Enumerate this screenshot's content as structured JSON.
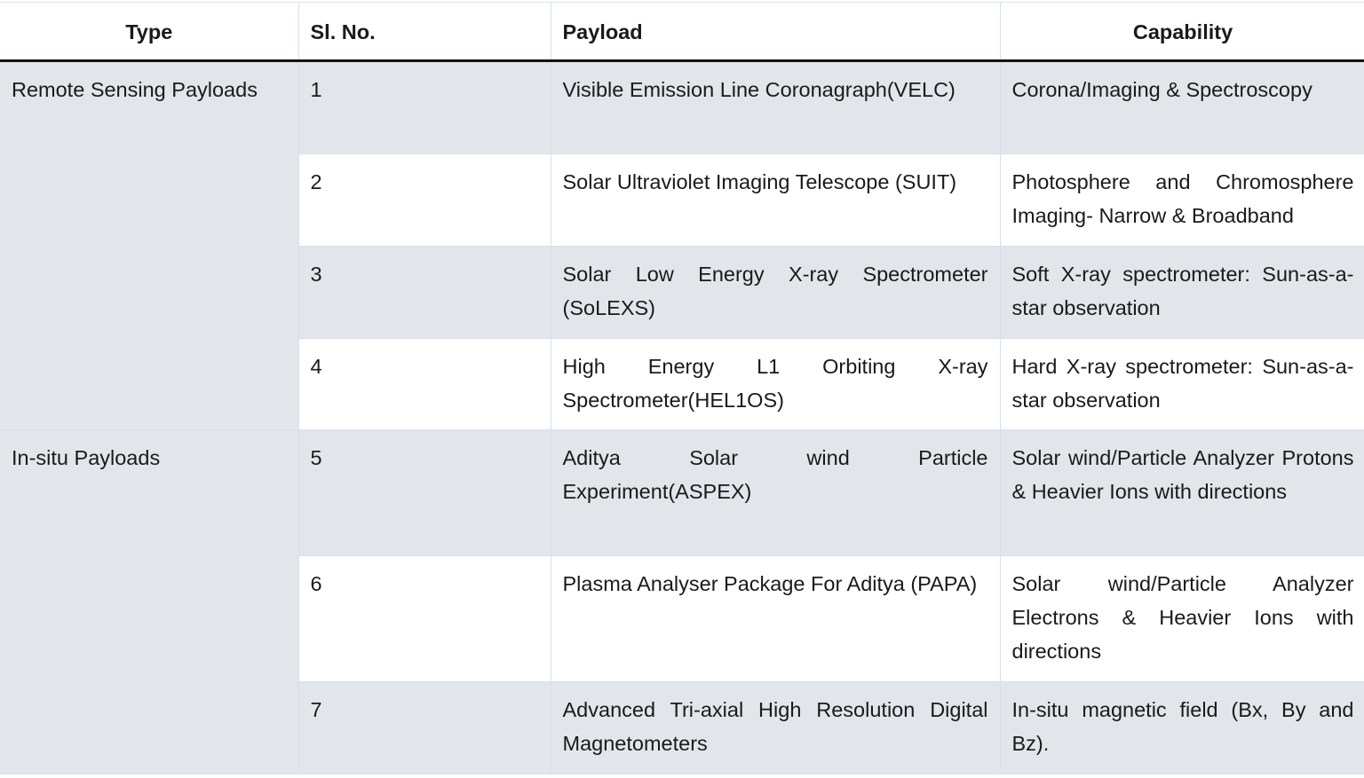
{
  "headers": [
    "Type",
    "Sl. No.",
    "Payload",
    "Capability"
  ],
  "groups": [
    {
      "type": "Remote Sensing Payloads",
      "rows": [
        {
          "no": "1",
          "payload": "Visible Emission Line Coronagraph(VELC)",
          "capability": "Corona/Imaging & Spectroscopy"
        },
        {
          "no": "2",
          "payload": "Solar Ultraviolet Imaging Telescope (SUIT)",
          "capability": "Photosphere and Chromosphere Imaging- Narrow & Broadband"
        },
        {
          "no": "3",
          "payload": "Solar Low Energy X-ray Spectrometer (SoLEXS)",
          "capability": "Soft X-ray spectrometer: Sun-as-a-star observation"
        },
        {
          "no": "4",
          "payload": "High Energy L1 Orbiting X-ray Spectrometer(HEL1OS)",
          "capability": "Hard X-ray spectrometer: Sun-as-a-star observation"
        }
      ]
    },
    {
      "type": "In-situ Payloads",
      "rows": [
        {
          "no": "5",
          "payload": "Aditya Solar wind Particle Experiment(ASPEX)",
          "capability": "Solar wind/Particle Analyzer Protons & Heavier Ions with directions"
        },
        {
          "no": "6",
          "payload": "Plasma Analyser Package For Aditya (PAPA)",
          "capability": "Solar wind/Particle Analyzer Electrons & Heavier Ions with directions"
        },
        {
          "no": "7",
          "payload": "Advanced Tri-axial High Resolution Digital Magnetometers",
          "capability": "In-situ magnetic field (Bx, By and Bz)."
        }
      ]
    }
  ]
}
